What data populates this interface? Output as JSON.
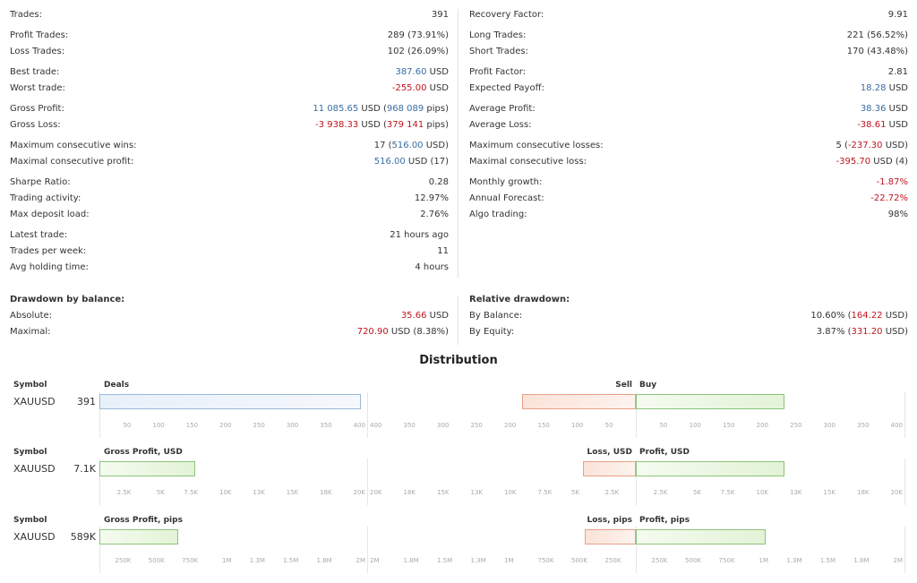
{
  "left_stats": [
    {
      "label": "Trades:",
      "parts": [
        {
          "t": "391"
        }
      ],
      "gap": false
    },
    {
      "label": "Profit Trades:",
      "parts": [
        {
          "t": "289 (73.91%)"
        }
      ],
      "gap": true
    },
    {
      "label": "Loss Trades:",
      "parts": [
        {
          "t": "102 (26.09%)"
        }
      ],
      "gap": false
    },
    {
      "label": "Best trade:",
      "parts": [
        {
          "t": "387.60",
          "c": "blue"
        },
        {
          "t": " USD"
        }
      ],
      "gap": true
    },
    {
      "label": "Worst trade:",
      "parts": [
        {
          "t": "-255.00",
          "c": "red"
        },
        {
          "t": " USD"
        }
      ],
      "gap": false
    },
    {
      "label": "Gross Profit:",
      "parts": [
        {
          "t": "11 085.65",
          "c": "blue"
        },
        {
          "t": " USD ("
        },
        {
          "t": "968 089",
          "c": "blue"
        },
        {
          "t": " pips)"
        }
      ],
      "gap": true
    },
    {
      "label": "Gross Loss:",
      "parts": [
        {
          "t": "-3 938.33",
          "c": "red"
        },
        {
          "t": " USD ("
        },
        {
          "t": "379 141",
          "c": "red"
        },
        {
          "t": " pips)"
        }
      ],
      "gap": false
    },
    {
      "label": "Maximum consecutive wins:",
      "parts": [
        {
          "t": "17 ("
        },
        {
          "t": "516.00",
          "c": "blue"
        },
        {
          "t": " USD)"
        }
      ],
      "gap": true
    },
    {
      "label": "Maximal consecutive profit:",
      "parts": [
        {
          "t": "516.00",
          "c": "blue"
        },
        {
          "t": " USD (17)"
        }
      ],
      "gap": false
    },
    {
      "label": "Sharpe Ratio:",
      "parts": [
        {
          "t": "0.28"
        }
      ],
      "gap": true
    },
    {
      "label": "Trading activity:",
      "parts": [
        {
          "t": "12.97%"
        }
      ],
      "gap": false
    },
    {
      "label": "Max deposit load:",
      "parts": [
        {
          "t": "2.76%"
        }
      ],
      "gap": false
    },
    {
      "label": "Latest trade:",
      "parts": [
        {
          "t": "21 hours ago"
        }
      ],
      "gap": true
    },
    {
      "label": "Trades per week:",
      "parts": [
        {
          "t": "11"
        }
      ],
      "gap": false
    },
    {
      "label": "Avg holding time:",
      "parts": [
        {
          "t": "4 hours"
        }
      ],
      "gap": false
    }
  ],
  "right_stats": [
    {
      "label": "Recovery Factor:",
      "parts": [
        {
          "t": "9.91"
        }
      ],
      "gap": false
    },
    {
      "label": "Long Trades:",
      "parts": [
        {
          "t": "221 (56.52%)"
        }
      ],
      "gap": true
    },
    {
      "label": "Short Trades:",
      "parts": [
        {
          "t": "170 (43.48%)"
        }
      ],
      "gap": false
    },
    {
      "label": "Profit Factor:",
      "parts": [
        {
          "t": "2.81"
        }
      ],
      "gap": true
    },
    {
      "label": "Expected Payoff:",
      "parts": [
        {
          "t": "18.28",
          "c": "blue"
        },
        {
          "t": " USD"
        }
      ],
      "gap": false
    },
    {
      "label": "Average Profit:",
      "parts": [
        {
          "t": "38.36",
          "c": "blue"
        },
        {
          "t": " USD"
        }
      ],
      "gap": true
    },
    {
      "label": "Average Loss:",
      "parts": [
        {
          "t": "-38.61",
          "c": "red"
        },
        {
          "t": " USD"
        }
      ],
      "gap": false
    },
    {
      "label": "Maximum consecutive losses:",
      "parts": [
        {
          "t": "5 ("
        },
        {
          "t": "-237.30",
          "c": "red"
        },
        {
          "t": " USD)"
        }
      ],
      "gap": true
    },
    {
      "label": "Maximal consecutive loss:",
      "parts": [
        {
          "t": "-395.70",
          "c": "red"
        },
        {
          "t": " USD (4)"
        }
      ],
      "gap": false
    },
    {
      "label": "Monthly growth:",
      "parts": [
        {
          "t": "-1.87%",
          "c": "red"
        }
      ],
      "gap": true
    },
    {
      "label": "Annual Forecast:",
      "parts": [
        {
          "t": "-22.72%",
          "c": "red"
        }
      ],
      "gap": false
    },
    {
      "label": "Algo trading:",
      "parts": [
        {
          "t": "98%"
        }
      ],
      "gap": false
    }
  ],
  "drawdown_balance": {
    "title": "Drawdown by balance:",
    "rows": [
      {
        "label": "Absolute:",
        "parts": [
          {
            "t": "35.66",
            "c": "red"
          },
          {
            "t": " USD"
          }
        ]
      },
      {
        "label": "Maximal:",
        "parts": [
          {
            "t": "720.90",
            "c": "red"
          },
          {
            "t": " USD (8.38%)"
          }
        ]
      }
    ]
  },
  "relative_drawdown": {
    "title": "Relative drawdown:",
    "rows": [
      {
        "label": "By Balance:",
        "parts": [
          {
            "t": "10.60% ("
          },
          {
            "t": "164.22",
            "c": "red"
          },
          {
            "t": " USD)"
          }
        ]
      },
      {
        "label": "By Equity:",
        "parts": [
          {
            "t": "3.87% ("
          },
          {
            "t": "331.20",
            "c": "red"
          },
          {
            "t": " USD)"
          }
        ]
      }
    ]
  },
  "distribution_title": "Distribution",
  "colors": {
    "blue": "#3a6ea5",
    "red": "#c0141e",
    "green_border": "#8cc47a",
    "red_border": "#e8a08a",
    "blue_border": "#9bb9d8"
  },
  "sections": [
    {
      "symbol_header": "Symbol",
      "symbol": "XAUUSD",
      "total": "391",
      "left_header": "Deals",
      "right_header_left": "Sell",
      "right_header_right": "Buy",
      "left_value": 391,
      "left_max": 400,
      "left_style": "blue",
      "neg_value": 170,
      "pos_value": 221,
      "right_max": 400,
      "left_ticks": [
        "50",
        "100",
        "150",
        "200",
        "250",
        "300",
        "350",
        "400"
      ],
      "neg_ticks": [
        "400",
        "350",
        "300",
        "250",
        "200",
        "150",
        "100",
        "50"
      ],
      "pos_ticks": [
        "50",
        "100",
        "150",
        "200",
        "250",
        "300",
        "350",
        "400"
      ]
    },
    {
      "symbol_header": "Symbol",
      "symbol": "XAUUSD",
      "total": "7.1K",
      "left_header": "Gross Profit, USD",
      "right_header_left": "Loss, USD",
      "right_header_right": "Profit, USD",
      "left_value": 7147,
      "left_max": 20000,
      "left_style": "green",
      "neg_value": 3938,
      "pos_value": 11086,
      "right_max": 20000,
      "left_ticks": [
        "2.5K",
        "5K",
        "7.5K",
        "10K",
        "13K",
        "15K",
        "18K",
        "20K"
      ],
      "neg_ticks": [
        "20K",
        "18K",
        "15K",
        "13K",
        "10K",
        "7.5K",
        "5K",
        "2.5K"
      ],
      "pos_ticks": [
        "2.5K",
        "5K",
        "7.5K",
        "10K",
        "13K",
        "15K",
        "18K",
        "20K"
      ]
    },
    {
      "symbol_header": "Symbol",
      "symbol": "XAUUSD",
      "total": "589K",
      "left_header": "Gross Profit, pips",
      "right_header_left": "Loss, pips",
      "right_header_right": "Profit, pips",
      "left_value": 589000,
      "left_max": 2000000,
      "left_style": "green",
      "neg_value": 379141,
      "pos_value": 968089,
      "right_max": 2000000,
      "left_ticks": [
        "250K",
        "500K",
        "750K",
        "1M",
        "1.3M",
        "1.5M",
        "1.8M",
        "2M"
      ],
      "neg_ticks": [
        "2M",
        "1.8M",
        "1.5M",
        "1.3M",
        "1M",
        "750K",
        "500K",
        "250K"
      ],
      "pos_ticks": [
        "250K",
        "500K",
        "750K",
        "1M",
        "1.3M",
        "1.5M",
        "1.8M",
        "2M"
      ]
    }
  ]
}
